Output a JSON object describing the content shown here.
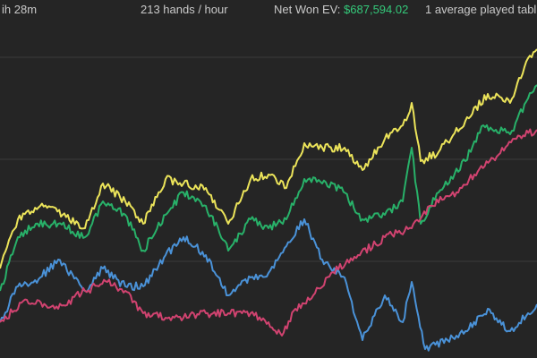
{
  "header": {
    "duration": "ih 28m",
    "hands_per_hour": "213 hands / hour",
    "net_won_label": "Net Won  EV:",
    "net_won_value": "$687,594.02",
    "tables": "1 average played tabl"
  },
  "colors": {
    "background": "#252525",
    "gridline": "#3a3a3a",
    "text": "#c9c9c9",
    "money": "#34c97a",
    "yellow": "#ece45a",
    "green": "#28b169",
    "blue": "#4a92d8",
    "red": "#d14370"
  },
  "chart_data": {
    "type": "line",
    "title": "",
    "xlabel": "",
    "ylabel": "",
    "grid": true,
    "legend": "none",
    "series": [
      {
        "color": "#ece45a",
        "points": [
          [
            0,
            300
          ],
          [
            20,
            245
          ],
          [
            45,
            230
          ],
          [
            70,
            240
          ],
          [
            95,
            255
          ],
          [
            115,
            205
          ],
          [
            140,
            225
          ],
          [
            160,
            250
          ],
          [
            185,
            200
          ],
          [
            205,
            205
          ],
          [
            230,
            210
          ],
          [
            255,
            250
          ],
          [
            280,
            200
          ],
          [
            300,
            195
          ],
          [
            320,
            210
          ],
          [
            340,
            160
          ],
          [
            360,
            165
          ],
          [
            385,
            165
          ],
          [
            405,
            190
          ],
          [
            430,
            155
          ],
          [
            450,
            140
          ],
          [
            460,
            115
          ],
          [
            470,
            180
          ],
          [
            490,
            170
          ],
          [
            520,
            135
          ],
          [
            545,
            105
          ],
          [
            570,
            115
          ],
          [
            590,
            65
          ],
          [
            600,
            55
          ]
        ]
      },
      {
        "color": "#28b169",
        "points": [
          [
            0,
            325
          ],
          [
            20,
            265
          ],
          [
            40,
            250
          ],
          [
            65,
            250
          ],
          [
            95,
            265
          ],
          [
            115,
            225
          ],
          [
            140,
            240
          ],
          [
            160,
            280
          ],
          [
            185,
            240
          ],
          [
            205,
            215
          ],
          [
            230,
            230
          ],
          [
            255,
            280
          ],
          [
            280,
            245
          ],
          [
            300,
            255
          ],
          [
            320,
            245
          ],
          [
            340,
            200
          ],
          [
            360,
            205
          ],
          [
            380,
            210
          ],
          [
            405,
            245
          ],
          [
            430,
            240
          ],
          [
            450,
            225
          ],
          [
            460,
            165
          ],
          [
            470,
            250
          ],
          [
            490,
            215
          ],
          [
            520,
            180
          ],
          [
            540,
            140
          ],
          [
            570,
            150
          ],
          [
            590,
            110
          ],
          [
            600,
            95
          ]
        ]
      },
      {
        "color": "#4a92d8",
        "points": [
          [
            0,
            360
          ],
          [
            20,
            320
          ],
          [
            45,
            310
          ],
          [
            65,
            290
          ],
          [
            95,
            325
          ],
          [
            115,
            300
          ],
          [
            140,
            320
          ],
          [
            160,
            320
          ],
          [
            185,
            285
          ],
          [
            205,
            265
          ],
          [
            230,
            285
          ],
          [
            255,
            330
          ],
          [
            280,
            310
          ],
          [
            300,
            305
          ],
          [
            320,
            275
          ],
          [
            340,
            245
          ],
          [
            360,
            290
          ],
          [
            385,
            310
          ],
          [
            405,
            380
          ],
          [
            430,
            330
          ],
          [
            450,
            360
          ],
          [
            460,
            315
          ],
          [
            475,
            390
          ],
          [
            500,
            380
          ],
          [
            520,
            370
          ],
          [
            545,
            345
          ],
          [
            570,
            370
          ],
          [
            590,
            350
          ],
          [
            600,
            340
          ]
        ]
      },
      {
        "color": "#d14370",
        "points": [
          [
            0,
            360
          ],
          [
            30,
            335
          ],
          [
            65,
            345
          ],
          [
            95,
            325
          ],
          [
            120,
            315
          ],
          [
            140,
            325
          ],
          [
            160,
            350
          ],
          [
            185,
            355
          ],
          [
            205,
            355
          ],
          [
            230,
            350
          ],
          [
            255,
            350
          ],
          [
            280,
            350
          ],
          [
            300,
            360
          ],
          [
            315,
            375
          ],
          [
            330,
            345
          ],
          [
            350,
            330
          ],
          [
            370,
            305
          ],
          [
            400,
            285
          ],
          [
            430,
            265
          ],
          [
            460,
            255
          ],
          [
            480,
            230
          ],
          [
            510,
            215
          ],
          [
            530,
            195
          ],
          [
            555,
            175
          ],
          [
            575,
            155
          ],
          [
            600,
            145
          ]
        ]
      }
    ]
  }
}
